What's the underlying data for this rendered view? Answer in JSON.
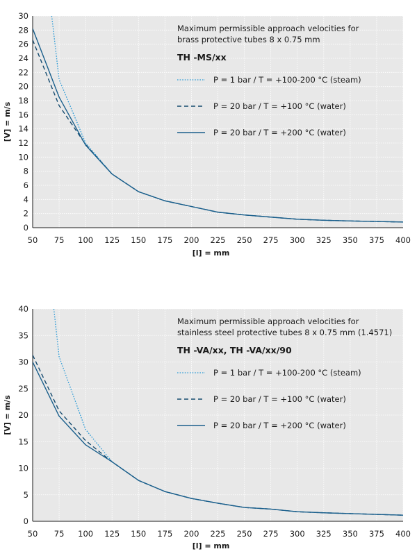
{
  "colors": {
    "plot_background": "#e8e8e8",
    "axis_line": "#1a1a1a",
    "steam_line": "#2a9ad6",
    "water100_line": "#144a6e",
    "water200_line": "#1a5f8c"
  },
  "chart_data": [
    {
      "type": "line",
      "annotation": {
        "title_lines": [
          "Maximum permissible approach velocities for",
          "brass protective tubes 8 x 0.75 mm"
        ],
        "product": "TH -MS/xx"
      },
      "xlabel": "[l] = mm",
      "ylabel": "[V] = m/s",
      "xlim": [
        50,
        400
      ],
      "ylim": [
        0,
        30
      ],
      "x_ticks": [
        50,
        75,
        100,
        125,
        150,
        175,
        200,
        225,
        250,
        275,
        300,
        325,
        350,
        375,
        400
      ],
      "y_ticks": [
        0,
        2,
        4,
        6,
        8,
        10,
        12,
        14,
        16,
        18,
        20,
        22,
        24,
        26,
        28,
        30
      ],
      "grid": true,
      "legend_position": "top-right",
      "series": [
        {
          "name": "P =    1 bar  /  T = +100-200 °C (steam)",
          "style": "dotted",
          "x": [
            68,
            75,
            100,
            125,
            150,
            175,
            200,
            225,
            250,
            275,
            300,
            325,
            350,
            375,
            400
          ],
          "y": [
            30,
            21,
            12,
            7.6,
            5.1,
            3.8,
            3.0,
            2.2,
            1.8,
            1.5,
            1.2,
            1.05,
            0.95,
            0.88,
            0.8
          ]
        },
        {
          "name": "P = 20 bar  /  T = +100 °C  (water)",
          "style": "dashed",
          "x": [
            50,
            75,
            100,
            125,
            150,
            175,
            200,
            225,
            250,
            275,
            300,
            325,
            350,
            375,
            400
          ],
          "y": [
            26.6,
            17.3,
            11.8,
            7.6,
            5.1,
            3.8,
            3.0,
            2.2,
            1.8,
            1.5,
            1.2,
            1.05,
            0.95,
            0.88,
            0.8
          ]
        },
        {
          "name": "P = 20 bar  /  T = +200 °C  (water)",
          "style": "solid",
          "x": [
            50,
            75,
            100,
            125,
            150,
            175,
            200,
            225,
            250,
            275,
            300,
            325,
            350,
            375,
            400
          ],
          "y": [
            28.2,
            18.5,
            11.7,
            7.6,
            5.1,
            3.8,
            3.0,
            2.2,
            1.8,
            1.5,
            1.2,
            1.05,
            0.95,
            0.88,
            0.8
          ]
        }
      ]
    },
    {
      "type": "line",
      "annotation": {
        "title_lines": [
          "Maximum permissible approach velocities for",
          "stainless steel protective tubes 8 x 0.75 mm  (1.4571)"
        ],
        "product": "TH -VA/xx,  TH -VA/xx/90"
      },
      "xlabel": "[l] = mm",
      "ylabel": "[V] = m/s",
      "xlim": [
        50,
        400
      ],
      "ylim": [
        0,
        40
      ],
      "x_ticks": [
        50,
        75,
        100,
        125,
        150,
        175,
        200,
        225,
        250,
        275,
        300,
        325,
        350,
        375,
        400
      ],
      "y_ticks": [
        0,
        5,
        10,
        15,
        20,
        25,
        30,
        35,
        40
      ],
      "grid": true,
      "legend_position": "top-right",
      "series": [
        {
          "name": "P =    1 bar  /  T = +100-200 °C (steam)",
          "style": "dotted",
          "x": [
            70,
            75,
            100,
            125,
            150,
            175,
            200,
            225,
            250,
            275,
            300,
            325,
            350,
            375,
            400
          ],
          "y": [
            40,
            31,
            17.3,
            11.2,
            7.7,
            5.6,
            4.3,
            3.4,
            2.6,
            2.3,
            1.8,
            1.6,
            1.45,
            1.3,
            1.15
          ]
        },
        {
          "name": "P = 20 bar  /  T = +100 °C  (water)",
          "style": "dashed",
          "x": [
            50,
            75,
            100,
            125,
            150,
            175,
            200,
            225,
            250,
            275,
            300,
            325,
            350,
            375,
            400
          ],
          "y": [
            31.3,
            20.8,
            15.2,
            11.2,
            7.7,
            5.6,
            4.3,
            3.4,
            2.6,
            2.3,
            1.8,
            1.6,
            1.45,
            1.3,
            1.15
          ]
        },
        {
          "name": "P = 20 bar  /  T = +200 °C  (water)",
          "style": "solid",
          "x": [
            50,
            75,
            100,
            125,
            150,
            175,
            200,
            225,
            250,
            275,
            300,
            325,
            350,
            375,
            400
          ],
          "y": [
            30.0,
            19.8,
            14.4,
            11.2,
            7.7,
            5.6,
            4.3,
            3.4,
            2.6,
            2.3,
            1.8,
            1.6,
            1.45,
            1.3,
            1.15
          ]
        }
      ]
    }
  ]
}
